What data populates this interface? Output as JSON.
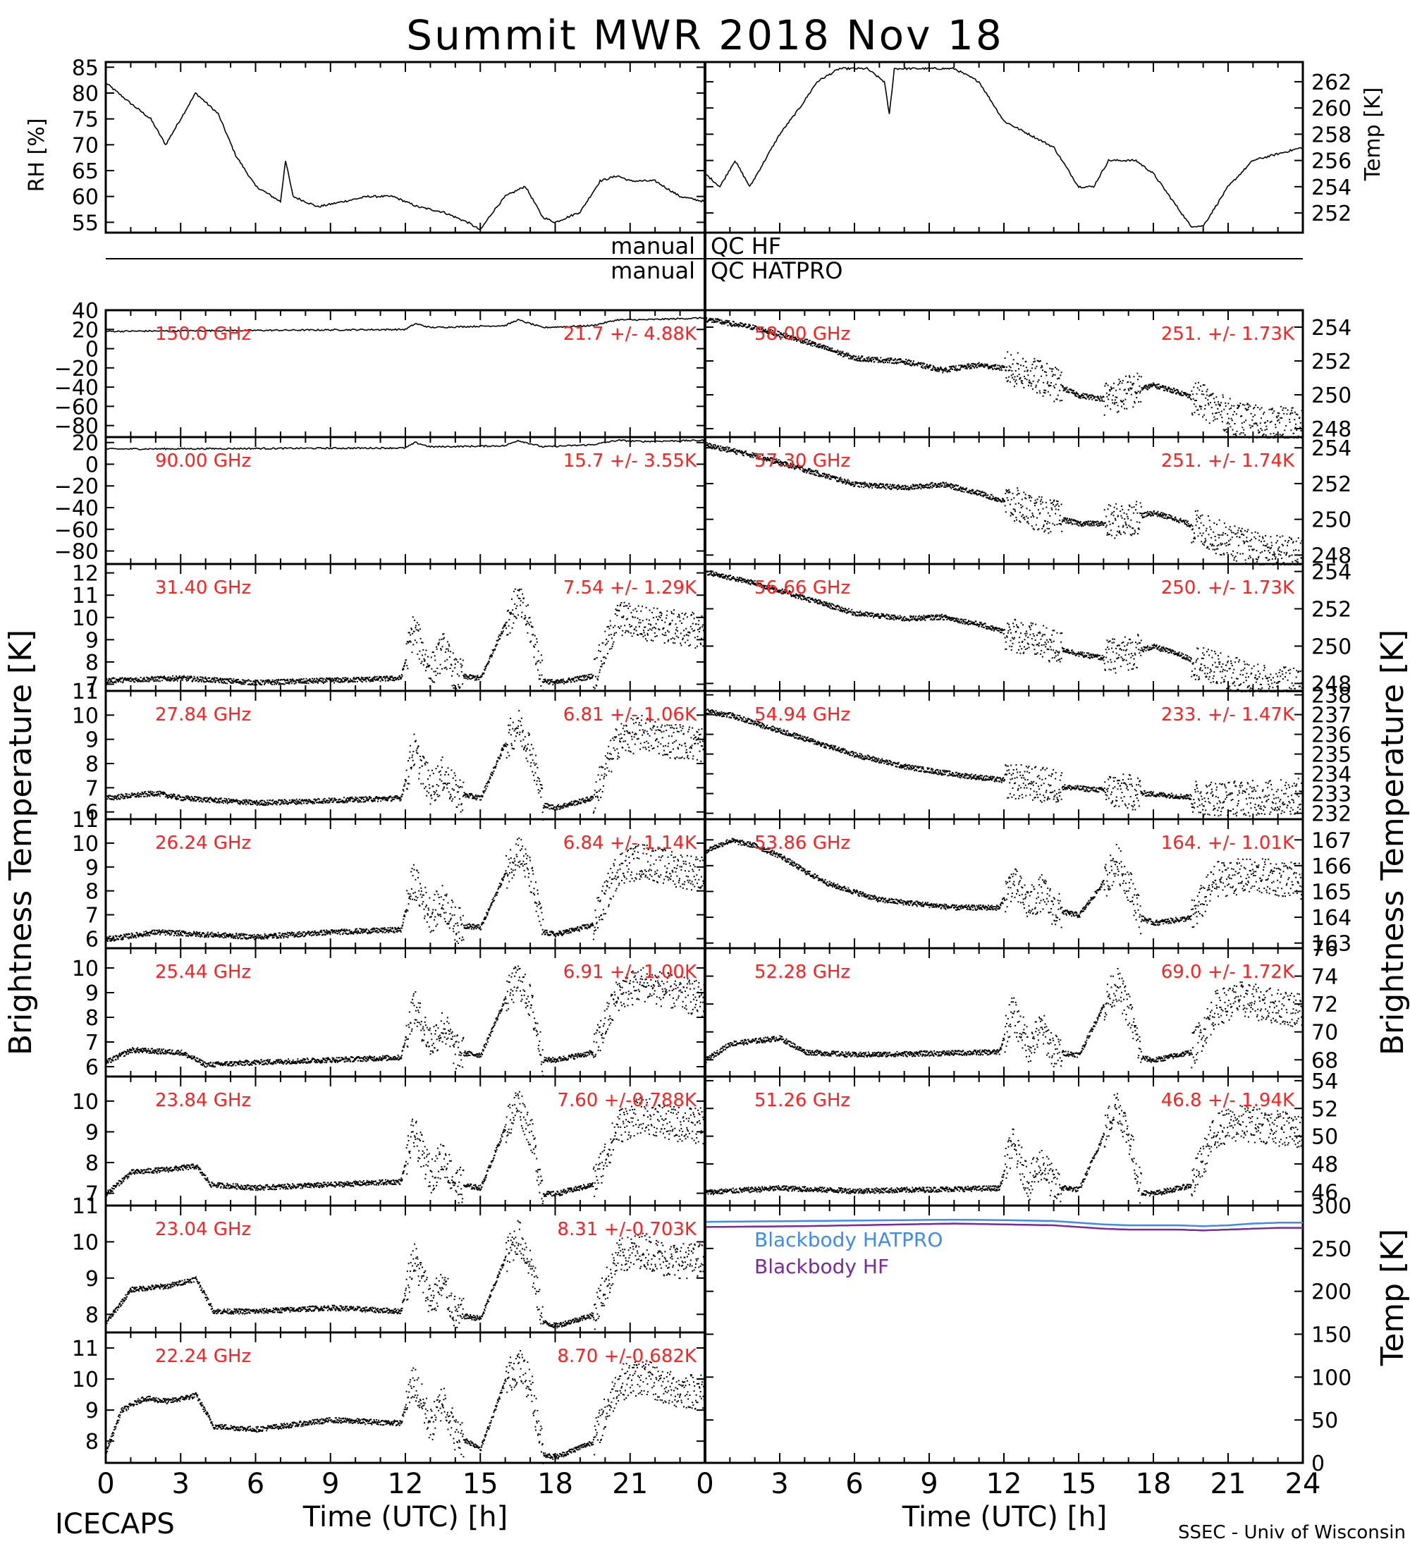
{
  "title": "Summit MWR 2018 Nov 18",
  "footer": {
    "left": "ICECAPS",
    "right": "SSEC - Univ of Wisconsin"
  },
  "qc": {
    "row1_left": "manual",
    "row1_right": "QC HF",
    "row2_left": "manual",
    "row2_right": "QC HATPRO"
  },
  "ylabels": {
    "rh": "RH [%]",
    "temp_top": "Temp [K]",
    "bt_left": "Brightness Temperature [K]",
    "bt_right": "Brightness Temperature [K]",
    "temp_bottom": "Temp [K]"
  },
  "xlabel": "Time (UTC) [h]",
  "x_ticks_left": [
    "0",
    "3",
    "6",
    "9",
    "12",
    "15",
    "18",
    "21"
  ],
  "x_ticks_right": [
    "0",
    "3",
    "6",
    "9",
    "12",
    "15",
    "18",
    "21",
    "24"
  ],
  "colors": {
    "label_red": "#ff2020",
    "hatpro_blue": "#3c8cf0",
    "hf_purple": "#7a2a9a",
    "data": "#000000"
  },
  "chart_data": [
    {
      "type": "line",
      "panel": "relative-humidity",
      "xlim": [
        0,
        24
      ],
      "ylim": [
        53,
        86
      ],
      "yticks": [
        55,
        60,
        65,
        70,
        75,
        80,
        85
      ],
      "x": [
        0,
        1,
        1.8,
        2.4,
        3.6,
        4.5,
        5.2,
        6,
        7,
        7.2,
        7.5,
        8.5,
        9.5,
        10.5,
        11.5,
        12,
        12.5,
        13.5,
        14.5,
        15,
        15.5,
        16,
        16.8,
        17.5,
        18,
        19,
        19.8,
        20.5,
        21,
        22,
        23,
        24
      ],
      "y": [
        82,
        78,
        75,
        70,
        80,
        76,
        68,
        62,
        59,
        67,
        60,
        58,
        59,
        60,
        60,
        59,
        58,
        57,
        55,
        53.5,
        57,
        60,
        62,
        56,
        55,
        57,
        63,
        64,
        63,
        63,
        60,
        59
      ]
    },
    {
      "type": "line",
      "panel": "air-temperature",
      "xlim": [
        0,
        24
      ],
      "ylim": [
        250.5,
        263.5
      ],
      "yticks": [
        252,
        254,
        256,
        258,
        260,
        262
      ],
      "x": [
        0,
        0.6,
        1.2,
        1.8,
        2.4,
        3,
        3.8,
        4.5,
        5.4,
        6.5,
        7.2,
        7.4,
        7.6,
        8.5,
        10,
        11,
        12,
        13,
        14,
        15,
        15.6,
        16.2,
        17.3,
        18,
        19.5,
        20,
        21,
        22,
        23,
        24
      ],
      "y": [
        255,
        254,
        256,
        254,
        256,
        258,
        260,
        262,
        263,
        263,
        262,
        259.5,
        263,
        263,
        263,
        262,
        259,
        258,
        257,
        254,
        254,
        256,
        256,
        255,
        251,
        251,
        254,
        256,
        256.5,
        257
      ]
    },
    {
      "type": "line",
      "panel": "channel",
      "frequency": "150.0 GHz",
      "stats": "21.7 +/- 4.88K",
      "xlim": [
        0,
        24
      ],
      "ylim": [
        -92,
        40
      ],
      "yticks": [
        40,
        20,
        0,
        -20,
        -40,
        -60,
        -80
      ],
      "ytick_labels": [
        "40",
        "20",
        "0",
        "−20",
        "−40",
        "−60",
        "−80"
      ],
      "x": [
        0,
        12,
        12.4,
        13,
        16,
        16.5,
        17.5,
        19.5,
        20.5,
        21.5,
        24
      ],
      "y": [
        18,
        20,
        26,
        22,
        24,
        30,
        22,
        24,
        30,
        30,
        32
      ]
    },
    {
      "type": "line",
      "panel": "channel",
      "frequency": "90.00 GHz",
      "stats": "15.7 +/- 3.55K",
      "xlim": [
        0,
        24
      ],
      "ylim": [
        -92,
        25
      ],
      "yticks": [
        20,
        0,
        -20,
        -40,
        -60,
        -80
      ],
      "ytick_labels": [
        "20",
        "0",
        "−20",
        "−40",
        "−60",
        "−80"
      ],
      "x": [
        0,
        12,
        12.4,
        13,
        16,
        16.5,
        17.5,
        19.5,
        20.5,
        21.5,
        24
      ],
      "y": [
        14,
        15,
        20,
        16,
        17,
        22,
        16,
        18,
        22,
        21,
        22
      ]
    },
    {
      "type": "scatter",
      "panel": "channel",
      "frequency": "31.40 GHz",
      "stats": "7.54 +/- 1.29K",
      "xlim": [
        0,
        24
      ],
      "ylim": [
        6.7,
        12.4
      ],
      "yticks": [
        7,
        8,
        9,
        10,
        11,
        12
      ],
      "x": [
        0,
        3,
        6,
        9,
        11.8,
        12.3,
        13,
        13.5,
        14,
        15,
        16,
        16.5,
        17,
        17.5,
        18,
        19.5,
        20.5,
        21.5,
        22.5,
        24
      ],
      "y": [
        7.2,
        7.3,
        7.1,
        7.2,
        7.3,
        9.5,
        7.6,
        8.6,
        7.4,
        7.3,
        9.8,
        10.8,
        9.5,
        7.2,
        7.1,
        7.4,
        10,
        9.8,
        9.6,
        9.4
      ]
    },
    {
      "type": "scatter",
      "panel": "channel",
      "frequency": "27.84 GHz",
      "stats": "6.81 +/- 1.06K",
      "xlim": [
        0,
        24
      ],
      "ylim": [
        5.7,
        11
      ],
      "yticks": [
        6,
        7,
        8,
        9,
        10,
        11
      ],
      "x": [
        0,
        2,
        3,
        6,
        9,
        11.8,
        12.3,
        13,
        13.5,
        14,
        15,
        16,
        16.5,
        17,
        17.5,
        18,
        19.5,
        20.5,
        21.5,
        22.5,
        24
      ],
      "y": [
        6.6,
        6.8,
        6.6,
        6.4,
        6.5,
        6.6,
        8.6,
        7.0,
        7.6,
        6.8,
        6.6,
        8.9,
        9.6,
        8.6,
        6.3,
        6.2,
        6.6,
        9.0,
        9.3,
        9.0,
        8.8
      ]
    },
    {
      "type": "scatter",
      "panel": "channel",
      "frequency": "26.24 GHz",
      "stats": "6.84 +/- 1.14K",
      "xlim": [
        0,
        24
      ],
      "ylim": [
        5.6,
        11
      ],
      "yticks": [
        6,
        7,
        8,
        9,
        10,
        11
      ],
      "x": [
        0,
        2,
        4,
        6,
        9,
        11.8,
        12.3,
        13,
        13.5,
        14,
        15,
        16,
        16.5,
        17,
        17.5,
        18,
        19.5,
        20.5,
        21.5,
        22.5,
        24
      ],
      "y": [
        6.0,
        6.3,
        6.2,
        6.1,
        6.3,
        6.4,
        8.5,
        7.0,
        7.6,
        6.6,
        6.5,
        8.8,
        9.8,
        8.6,
        6.3,
        6.2,
        6.6,
        9.0,
        9.3,
        9.0,
        8.7
      ]
    },
    {
      "type": "scatter",
      "panel": "channel",
      "frequency": "25.44 GHz",
      "stats": "6.91 +/- 1.00K",
      "xlim": [
        0,
        24
      ],
      "ylim": [
        5.6,
        10.8
      ],
      "yticks": [
        6,
        7,
        8,
        9,
        10
      ],
      "x": [
        0,
        1,
        3,
        4,
        6,
        9,
        11.8,
        12.3,
        13,
        13.5,
        14,
        15,
        16,
        16.5,
        17,
        17.5,
        18,
        19.5,
        20.5,
        21.5,
        22.5,
        24
      ],
      "y": [
        6.2,
        6.7,
        6.6,
        6.1,
        6.2,
        6.3,
        6.4,
        8.5,
        7.0,
        7.7,
        6.6,
        6.5,
        8.8,
        9.6,
        8.6,
        6.3,
        6.3,
        6.6,
        9.0,
        9.4,
        9.1,
        8.7
      ]
    },
    {
      "type": "scatter",
      "panel": "channel",
      "frequency": "23.84 GHz",
      "stats": "7.60 +/-0.788K",
      "xlim": [
        0,
        24
      ],
      "ylim": [
        6.6,
        10.8
      ],
      "yticks": [
        7,
        8,
        9,
        10
      ],
      "x": [
        0,
        1,
        2.5,
        3.6,
        4.2,
        6,
        9,
        11.8,
        12.3,
        13,
        13.5,
        14,
        15,
        16,
        16.5,
        17,
        17.5,
        18,
        19.5,
        20.5,
        21.5,
        22.5,
        24
      ],
      "y": [
        7.0,
        7.7,
        7.8,
        7.9,
        7.3,
        7.2,
        7.3,
        7.4,
        9.0,
        7.6,
        8.2,
        7.3,
        7.2,
        9.2,
        10.0,
        9.0,
        7.0,
        7.0,
        7.3,
        9.2,
        9.6,
        9.3,
        9.2
      ]
    },
    {
      "type": "scatter",
      "panel": "channel",
      "frequency": "23.04 GHz",
      "stats": "8.31 +/-0.703K",
      "xlim": [
        0,
        24
      ],
      "ylim": [
        7.5,
        11
      ],
      "yticks": [
        8,
        9,
        10,
        11
      ],
      "x": [
        0,
        1,
        2.5,
        3.6,
        4.3,
        6,
        9,
        11.8,
        12.3,
        13,
        13.5,
        14,
        15,
        16,
        16.5,
        17,
        17.5,
        18,
        19.5,
        20.5,
        21.5,
        22.5,
        24
      ],
      "y": [
        7.8,
        8.7,
        8.8,
        9.0,
        8.1,
        8.1,
        8.2,
        8.1,
        9.6,
        8.4,
        8.8,
        8.0,
        7.9,
        9.6,
        10.2,
        9.4,
        7.8,
        7.7,
        8.0,
        9.6,
        9.8,
        9.5,
        9.5
      ]
    },
    {
      "type": "scatter",
      "panel": "channel",
      "frequency": "22.24 GHz",
      "stats": "8.70 +/-0.682K",
      "xlim": [
        0,
        24
      ],
      "ylim": [
        7.3,
        11.5
      ],
      "yticks": [
        8,
        9,
        10,
        11
      ],
      "x": [
        0,
        0.6,
        1.5,
        2.5,
        3.6,
        4.3,
        6,
        9,
        11.8,
        12.3,
        13,
        13.5,
        14,
        15,
        16,
        16.5,
        17,
        17.5,
        18,
        19.5,
        20.5,
        21.5,
        22.5,
        24
      ],
      "y": [
        7.7,
        9.0,
        9.4,
        9.3,
        9.5,
        8.5,
        8.4,
        8.7,
        8.6,
        10.0,
        8.5,
        9.4,
        8.2,
        7.8,
        10.0,
        10.5,
        9.8,
        7.6,
        7.5,
        8.0,
        9.9,
        10.1,
        9.7,
        9.6
      ]
    },
    {
      "type": "scatter",
      "panel": "channel",
      "frequency": "58.00 GHz",
      "stats": "251. +/- 1.73K",
      "xlim": [
        0,
        24
      ],
      "ylim": [
        247.5,
        255
      ],
      "yticks": [
        248,
        250,
        252,
        254
      ],
      "x": [
        0,
        2,
        4,
        6,
        8,
        9.5,
        11,
        12.5,
        13.5,
        15,
        16,
        17,
        18,
        19,
        20,
        21,
        22,
        23,
        24
      ],
      "y": [
        254.5,
        254.0,
        253.2,
        252.2,
        252.0,
        251.5,
        251.8,
        251.5,
        251.0,
        250.0,
        249.8,
        250.2,
        250.6,
        250.2,
        249.6,
        248.8,
        248.4,
        248.3,
        248.2
      ]
    },
    {
      "type": "scatter",
      "panel": "channel",
      "frequency": "57.30 GHz",
      "stats": "251. +/- 1.74K",
      "xlim": [
        0,
        24
      ],
      "ylim": [
        247.5,
        254.6
      ],
      "yticks": [
        248,
        250,
        252,
        254
      ],
      "x": [
        0,
        2,
        4,
        6,
        8,
        9.5,
        11,
        12.5,
        13.5,
        15,
        16,
        17,
        18,
        19,
        20,
        21,
        22,
        23,
        24
      ],
      "y": [
        254.2,
        253.6,
        252.8,
        252.0,
        251.8,
        252.0,
        251.5,
        250.8,
        250.3,
        249.8,
        249.8,
        250.1,
        250.4,
        250.0,
        249.4,
        248.8,
        248.4,
        248.2,
        248.0
      ]
    },
    {
      "type": "scatter",
      "panel": "channel",
      "frequency": "56.66 GHz",
      "stats": "250. +/- 1.73K",
      "xlim": [
        0,
        24
      ],
      "ylim": [
        247.6,
        254.4
      ],
      "yticks": [
        248,
        250,
        252,
        254
      ],
      "x": [
        0,
        2,
        4,
        6,
        8,
        9.5,
        11,
        12.5,
        13.5,
        15,
        16,
        17,
        18,
        19,
        20,
        21,
        22,
        23,
        24
      ],
      "y": [
        254.0,
        253.4,
        252.6,
        251.8,
        251.5,
        251.6,
        251.2,
        250.6,
        250.2,
        249.6,
        249.4,
        249.7,
        250.0,
        249.6,
        249.0,
        248.6,
        248.2,
        248.0,
        247.9
      ]
    },
    {
      "type": "scatter",
      "panel": "channel",
      "frequency": "54.94 GHz",
      "stats": "233. +/- 1.47K",
      "xlim": [
        0,
        24
      ],
      "ylim": [
        231.7,
        238.2
      ],
      "yticks": [
        232,
        233,
        234,
        235,
        236,
        237,
        238
      ],
      "x": [
        0,
        1,
        2,
        3,
        4,
        5,
        6,
        8,
        10,
        12,
        14,
        16,
        18,
        20,
        22,
        24
      ],
      "y": [
        237.2,
        237.0,
        236.6,
        236.2,
        235.8,
        235.4,
        235.0,
        234.4,
        234.0,
        233.7,
        233.4,
        233.2,
        233.0,
        232.8,
        232.8,
        232.9
      ]
    },
    {
      "type": "scatter",
      "panel": "channel",
      "frequency": "53.86 GHz",
      "stats": "164. +/- 1.01K",
      "xlim": [
        0,
        24
      ],
      "ylim": [
        162.8,
        167.8
      ],
      "yticks": [
        163,
        164,
        165,
        166,
        167
      ],
      "x": [
        0,
        1,
        2,
        3,
        4,
        5,
        6,
        7,
        8,
        10,
        11.8,
        12.3,
        13,
        13.5,
        14,
        15,
        16,
        16.5,
        17,
        17.5,
        18,
        19.5,
        20.5,
        21.5,
        22.5,
        24
      ],
      "y": [
        166.6,
        167.0,
        166.8,
        166.4,
        165.8,
        165.3,
        165.0,
        164.7,
        164.6,
        164.4,
        164.4,
        165.4,
        164.5,
        165.0,
        164.3,
        164.1,
        165.4,
        166.2,
        165.3,
        164.0,
        163.8,
        164.0,
        165.5,
        165.6,
        165.6,
        165.4
      ]
    },
    {
      "type": "scatter",
      "panel": "channel",
      "frequency": "52.28 GHz",
      "stats": "69.0 +/- 1.72K",
      "xlim": [
        0,
        24
      ],
      "ylim": [
        66.8,
        76
      ],
      "yticks": [
        68,
        70,
        72,
        74,
        76
      ],
      "x": [
        0,
        1,
        3,
        4,
        6,
        9,
        11.8,
        12.3,
        13,
        13.5,
        14,
        15,
        16,
        16.5,
        17,
        17.5,
        18,
        19.5,
        20.5,
        21.5,
        22.5,
        24
      ],
      "y": [
        68.0,
        69.2,
        69.6,
        68.6,
        68.4,
        68.5,
        68.6,
        71.5,
        69.0,
        70.3,
        68.6,
        68.4,
        72.0,
        73.5,
        71.6,
        68.2,
        68.0,
        68.6,
        71.8,
        72.4,
        72.0,
        71.6
      ]
    },
    {
      "type": "scatter",
      "panel": "channel",
      "frequency": "51.26 GHz",
      "stats": "46.8 +/- 1.94K",
      "xlim": [
        0,
        24
      ],
      "ylim": [
        45,
        54.3
      ],
      "yticks": [
        46,
        48,
        50,
        52,
        54
      ],
      "x": [
        0,
        3,
        6,
        9,
        11.8,
        12.3,
        13,
        13.5,
        14,
        15,
        16,
        16.5,
        17,
        17.5,
        18,
        19.5,
        20.5,
        21.5,
        22.5,
        24
      ],
      "y": [
        46.0,
        46.3,
        46.1,
        46.2,
        46.3,
        49.5,
        46.7,
        48.2,
        46.4,
        46.2,
        50.2,
        52.5,
        50.0,
        46.0,
        45.9,
        46.5,
        50.5,
        51.0,
        50.8,
        50.3
      ]
    },
    {
      "type": "line",
      "panel": "blackbody-temperature",
      "xlim": [
        0,
        24
      ],
      "ylim": [
        0,
        300
      ],
      "yticks": [
        0,
        50,
        100,
        150,
        200,
        250,
        300
      ],
      "x": [
        0,
        4,
        8,
        10,
        12,
        14,
        15,
        16,
        17,
        18,
        19,
        20,
        21,
        22,
        23,
        24
      ],
      "series": [
        {
          "name": "Blackbody HATPRO",
          "values": [
            281,
            282,
            283,
            283.5,
            283,
            282,
            280,
            278,
            277,
            277,
            277,
            276,
            277,
            279,
            280,
            280
          ]
        },
        {
          "name": "Blackbody HF",
          "values": [
            275,
            276,
            278,
            279,
            278,
            277,
            275,
            273,
            272,
            272,
            272,
            271,
            272,
            273,
            274,
            274
          ]
        }
      ]
    }
  ]
}
